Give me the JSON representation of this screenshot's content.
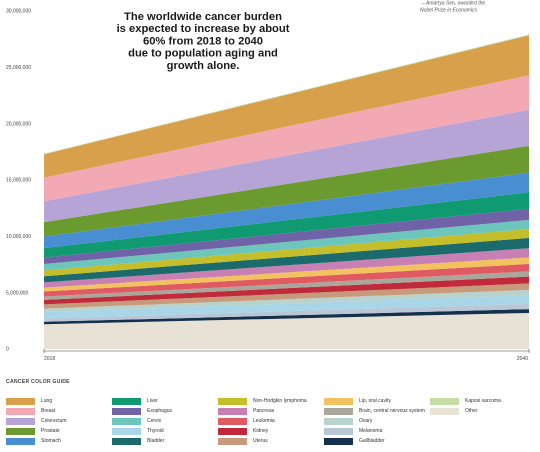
{
  "quote": {
    "line1": "– Amartya Sen, awarded the",
    "line2": "Nobel Prize in Economics"
  },
  "title_lines": [
    "The worldwide cancer burden",
    "is expected to increase by about",
    "60% from 2018 to 2040",
    "due to population aging and",
    "growth alone."
  ],
  "chart_data": {
    "type": "area",
    "stacked": true,
    "x": [
      "2018",
      "2040"
    ],
    "y_ticks": [
      "0",
      "5,000,000",
      "10,000,000",
      "15,000,000",
      "20,000,000",
      "25,000,000",
      "30,000,000"
    ],
    "ylim": [
      0,
      30000000
    ],
    "series": [
      {
        "name": "Other",
        "color": "#e8e2d6",
        "values": [
          2200000,
          3200000
        ]
      },
      {
        "name": "Gallbladder",
        "color": "#14304a",
        "values": [
          220000,
          340000
        ]
      },
      {
        "name": "Melanoma",
        "color": "#b9c6d6",
        "values": [
          290000,
          460000
        ]
      },
      {
        "name": "Thyroid",
        "color": "#a8d6e8",
        "values": [
          570000,
          780000
        ]
      },
      {
        "name": "Ovary",
        "color": "#b9d2cc",
        "values": [
          300000,
          470000
        ]
      },
      {
        "name": "Uterus",
        "color": "#c79a7c",
        "values": [
          380000,
          570000
        ]
      },
      {
        "name": "Kidney",
        "color": "#c02a3a",
        "values": [
          400000,
          610000
        ]
      },
      {
        "name": "Brain, central nervous system",
        "color": "#a9a69b",
        "values": [
          300000,
          460000
        ]
      },
      {
        "name": "Leukemia",
        "color": "#e05a62",
        "values": [
          440000,
          660000
        ]
      },
      {
        "name": "Lip, oral cavity",
        "color": "#f2c25e",
        "values": [
          350000,
          580000
        ]
      },
      {
        "name": "Pancreas",
        "color": "#c77fb4",
        "values": [
          460000,
          810000
        ]
      },
      {
        "name": "Bladder",
        "color": "#1c6b6c",
        "values": [
          550000,
          920000
        ]
      },
      {
        "name": "Non-Hodgkin lymphoma",
        "color": "#c4be2a",
        "values": [
          510000,
          800000
        ]
      },
      {
        "name": "Cervix",
        "color": "#6cc6bc",
        "values": [
          570000,
          800000
        ]
      },
      {
        "name": "Esophagus",
        "color": "#7062a6",
        "values": [
          570000,
          990000
        ]
      },
      {
        "name": "Liver",
        "color": "#0f9a72",
        "values": [
          840000,
          1460000
        ]
      },
      {
        "name": "Stomach",
        "color": "#4a8ed2",
        "values": [
          1030000,
          1750000
        ]
      },
      {
        "name": "Prostate",
        "color": "#6b9a2e",
        "values": [
          1280000,
          2370000
        ]
      },
      {
        "name": "Colorectum",
        "color": "#b7a4d6",
        "values": [
          1850000,
          3200000
        ]
      },
      {
        "name": "Breast",
        "color": "#f2a9b4",
        "values": [
          2090000,
          3060000
        ]
      },
      {
        "name": "Lung",
        "color": "#d8a04a",
        "values": [
          2090000,
          3550000
        ]
      },
      {
        "name": "Kaposi sarcoma",
        "color": "#c6dea4",
        "values": [
          42000,
          74000
        ]
      }
    ]
  },
  "legend": {
    "title": "CANCER COLOR GUIDE",
    "items": [
      {
        "label": "Lung",
        "color": "#d8a04a"
      },
      {
        "label": "Breast",
        "color": "#f2a9b4"
      },
      {
        "label": "Colorectum",
        "color": "#b7a4d6"
      },
      {
        "label": "Prostate",
        "color": "#6b9a2e"
      },
      {
        "label": "Stomach",
        "color": "#4a8ed2"
      },
      {
        "label": "Liver",
        "color": "#0f9a72"
      },
      {
        "label": "Esophagus",
        "color": "#7062a6"
      },
      {
        "label": "Cervix",
        "color": "#6cc6bc"
      },
      {
        "label": "Thyroid",
        "color": "#a8d6e8"
      },
      {
        "label": "Bladder",
        "color": "#1c6b6c"
      },
      {
        "label": "Non-Hodgkin lymphoma",
        "color": "#c4be2a"
      },
      {
        "label": "Pancreas",
        "color": "#c77fb4"
      },
      {
        "label": "Leukemia",
        "color": "#e05a62"
      },
      {
        "label": "Kidney",
        "color": "#c02a3a"
      },
      {
        "label": "Uterus",
        "color": "#c79a7c"
      },
      {
        "label": "Lip, oral cavity",
        "color": "#f2c25e"
      },
      {
        "label": "Brain, central nervous system",
        "color": "#a9a69b"
      },
      {
        "label": "Ovary",
        "color": "#b9d2cc"
      },
      {
        "label": "Melanoma",
        "color": "#b9c6d6"
      },
      {
        "label": "Gallbladder",
        "color": "#14304a"
      },
      {
        "label": "Kaposi sarcoma",
        "color": "#c6dea4"
      },
      {
        "label": "Other",
        "color": "#e8e2d6"
      }
    ]
  }
}
